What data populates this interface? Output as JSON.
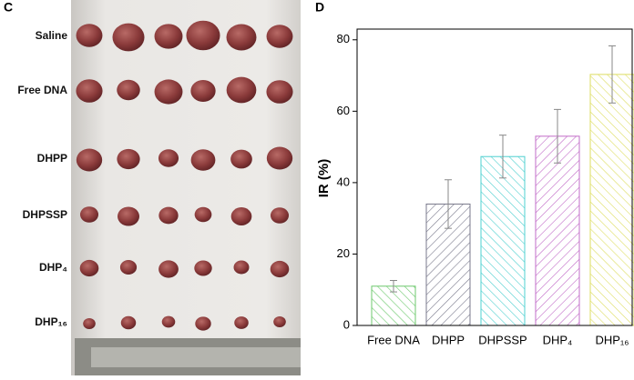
{
  "panel_c": {
    "label": "C",
    "rows": [
      "Saline",
      "Free DNA",
      "DHPP",
      "DHPSSP",
      "DHP₄",
      "DHP₁₆"
    ]
  },
  "chart_data": {
    "type": "bar",
    "panel_label": "D",
    "ylabel": "IR (%)",
    "categories": [
      "Free DNA",
      "DHPP",
      "DHPSSP",
      "DHP₄",
      "DHP₁₆"
    ],
    "values": [
      11,
      34,
      47.3,
      53,
      70.3
    ],
    "errors": [
      1.6,
      6.8,
      6,
      7.5,
      8
    ],
    "colors": [
      "#6cc86c",
      "#7a7a8c",
      "#4fd0d0",
      "#c26cc8",
      "#dede62"
    ],
    "ylim": [
      0,
      83
    ],
    "yticks": [
      0,
      20,
      40,
      60,
      80
    ],
    "hatch": true
  }
}
